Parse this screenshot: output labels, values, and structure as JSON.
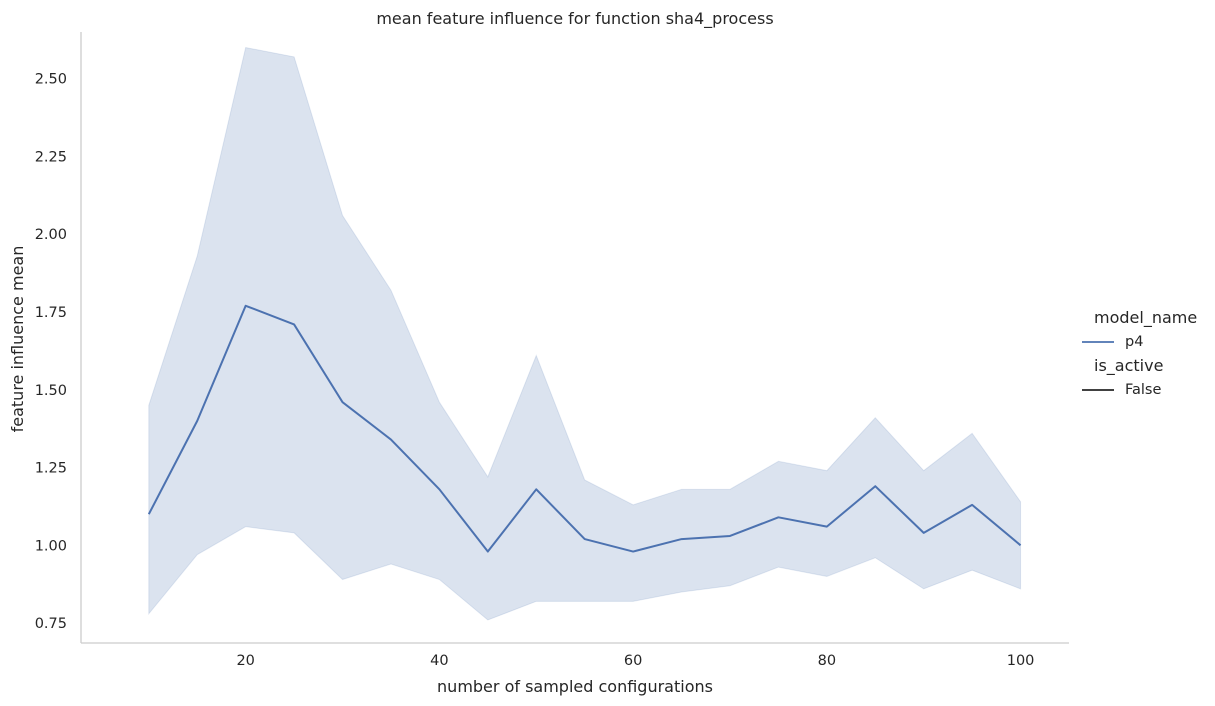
{
  "chart_data": {
    "type": "line",
    "title": "mean feature influence for function sha4_process",
    "xlabel": "number of sampled configurations",
    "ylabel": "feature influence mean",
    "xlim": [
      3,
      105
    ],
    "ylim": [
      0.686,
      2.65
    ],
    "xticks": [
      20,
      40,
      60,
      80,
      100
    ],
    "yticks": [
      0.75,
      1.0,
      1.25,
      1.5,
      1.75,
      2.0,
      2.25,
      2.5
    ],
    "ytick_labels": [
      "0.75",
      "1.00",
      "1.25",
      "1.50",
      "1.75",
      "2.00",
      "2.25",
      "2.50"
    ],
    "grid": false,
    "legend_placement": "right",
    "series": [
      {
        "name": "p4",
        "color": "#4c72b0",
        "band_color": "#4c72b0",
        "x": [
          10,
          15,
          20,
          25,
          30,
          35,
          40,
          45,
          50,
          55,
          60,
          65,
          70,
          75,
          80,
          85,
          90,
          95,
          100
        ],
        "y": [
          1.1,
          1.4,
          1.77,
          1.71,
          1.46,
          1.34,
          1.18,
          0.98,
          1.18,
          1.02,
          0.98,
          1.02,
          1.03,
          1.09,
          1.06,
          1.19,
          1.04,
          1.13,
          1.0
        ],
        "ci_low": [
          0.78,
          0.97,
          1.06,
          1.04,
          0.89,
          0.94,
          0.89,
          0.76,
          0.82,
          0.82,
          0.82,
          0.85,
          0.87,
          0.93,
          0.9,
          0.96,
          0.86,
          0.92,
          0.86
        ],
        "ci_high": [
          1.45,
          1.93,
          2.6,
          2.57,
          2.06,
          1.82,
          1.46,
          1.22,
          1.61,
          1.21,
          1.13,
          1.18,
          1.18,
          1.27,
          1.24,
          1.41,
          1.24,
          1.36,
          1.14
        ]
      }
    ],
    "legend": {
      "hue_title": "model_name",
      "hue_items": [
        {
          "label": "p4",
          "color": "#4c72b0"
        }
      ],
      "style_title": "is_active",
      "style_items": [
        {
          "label": "False",
          "color": "#262626"
        }
      ]
    }
  }
}
